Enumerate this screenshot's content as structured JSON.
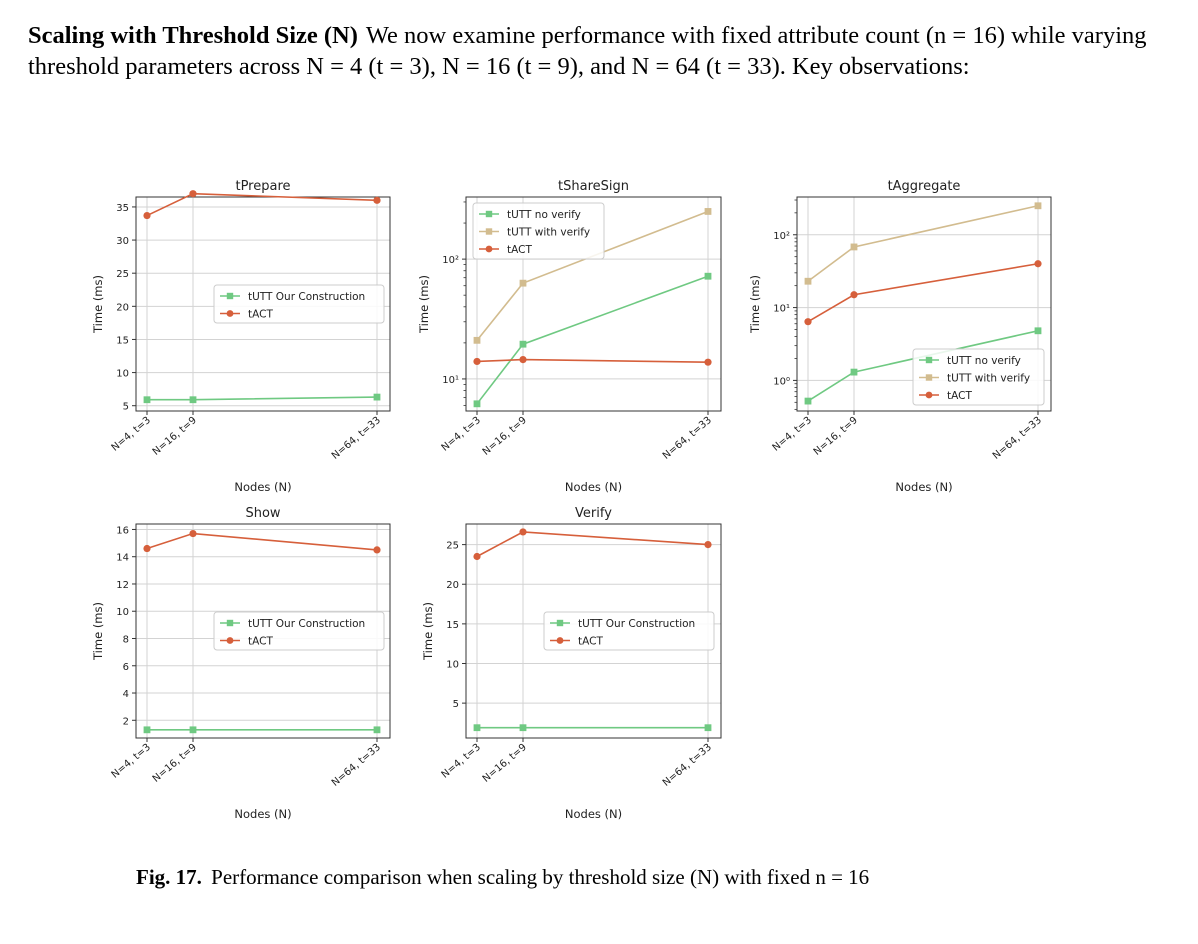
{
  "paragraph": {
    "lead": "Scaling with Threshold Size (N)",
    "body": "We now examine performance with fixed attribute count (n = 16) while varying threshold parameters across N = 4 (t = 3), N = 16 (t = 9), and N = 64 (t = 33). Key observations:"
  },
  "caption": {
    "label": "Fig. 17.",
    "text": "Performance comparison when scaling by threshold size (N) with fixed n = 16"
  },
  "colors": {
    "green": "#6fc982",
    "tan": "#d2bc8f",
    "red": "#d65f3b",
    "grid": "#d3d3d3"
  },
  "chart_data": [
    {
      "type": "line",
      "title": "tPrepare",
      "xlabel": "Nodes (N)",
      "ylabel": "Time (ms)",
      "categories": [
        "N=4, t=3",
        "N=16, t=9",
        "N=64, t=33"
      ],
      "x": [
        4,
        16,
        64
      ],
      "yscale": "linear",
      "ylim": [
        4.2,
        36.5
      ],
      "yticks": [
        5,
        10,
        15,
        20,
        25,
        30,
        35
      ],
      "ytick_labels": [
        "5",
        "10",
        "15",
        "20",
        "25",
        "30",
        "35"
      ],
      "legend_position": "center-right",
      "series": [
        {
          "name": "tUTT Our Construction",
          "color": "green",
          "marker": "square",
          "values": [
            5.9,
            5.9,
            6.3
          ]
        },
        {
          "name": "tACT",
          "color": "red",
          "marker": "circle",
          "values": [
            33.7,
            37.0,
            36.0
          ]
        }
      ]
    },
    {
      "type": "line",
      "title": "tShareSign",
      "xlabel": "Nodes (N)",
      "ylabel": "Time (ms)",
      "categories": [
        "N=4, t=3",
        "N=16, t=9",
        "N=64, t=33"
      ],
      "x": [
        4,
        16,
        64
      ],
      "yscale": "log",
      "ylim": [
        5.4,
        330
      ],
      "yticks": [
        10,
        100
      ],
      "ytick_labels": [
        "10¹",
        "10²"
      ],
      "legend_position": "upper-left",
      "series": [
        {
          "name": "tUTT no verify",
          "color": "green",
          "marker": "square",
          "values": [
            6.2,
            19.5,
            72
          ]
        },
        {
          "name": "tUTT with verify",
          "color": "tan",
          "marker": "square",
          "values": [
            21,
            63,
            250
          ]
        },
        {
          "name": "tACT",
          "color": "red",
          "marker": "circle",
          "values": [
            14,
            14.5,
            13.8
          ]
        }
      ]
    },
    {
      "type": "line",
      "title": "tAggregate",
      "xlabel": "Nodes (N)",
      "ylabel": "Time (ms)",
      "categories": [
        "N=4, t=3",
        "N=16, t=9",
        "N=64, t=33"
      ],
      "x": [
        4,
        16,
        64
      ],
      "yscale": "log",
      "ylim": [
        0.38,
        330
      ],
      "yticks": [
        1,
        10,
        100
      ],
      "ytick_labels": [
        "10⁰",
        "10¹",
        "10²"
      ],
      "legend_position": "lower-right",
      "series": [
        {
          "name": "tUTT no verify",
          "color": "green",
          "marker": "square",
          "values": [
            0.52,
            1.3,
            4.8
          ]
        },
        {
          "name": "tUTT with verify",
          "color": "tan",
          "marker": "square",
          "values": [
            23,
            68,
            250
          ]
        },
        {
          "name": "tACT",
          "color": "red",
          "marker": "circle",
          "values": [
            6.4,
            15,
            40
          ]
        }
      ]
    },
    {
      "type": "line",
      "title": "Show",
      "xlabel": "Nodes (N)",
      "ylabel": "Time (ms)",
      "categories": [
        "N=4, t=3",
        "N=16, t=9",
        "N=64, t=33"
      ],
      "x": [
        4,
        16,
        64
      ],
      "yscale": "linear",
      "ylim": [
        0.7,
        16.4
      ],
      "yticks": [
        2,
        4,
        6,
        8,
        10,
        12,
        14,
        16
      ],
      "ytick_labels": [
        "2",
        "4",
        "6",
        "8",
        "10",
        "12",
        "14",
        "16"
      ],
      "legend_position": "center-right",
      "series": [
        {
          "name": "tUTT Our Construction",
          "color": "green",
          "marker": "square",
          "values": [
            1.3,
            1.3,
            1.3
          ]
        },
        {
          "name": "tACT",
          "color": "red",
          "marker": "circle",
          "values": [
            14.6,
            15.7,
            14.5
          ]
        }
      ]
    },
    {
      "type": "line",
      "title": "Verify",
      "xlabel": "Nodes (N)",
      "ylabel": "Time (ms)",
      "categories": [
        "N=4, t=3",
        "N=16, t=9",
        "N=64, t=33"
      ],
      "x": [
        4,
        16,
        64
      ],
      "yscale": "linear",
      "ylim": [
        0.6,
        27.6
      ],
      "yticks": [
        5,
        10,
        15,
        20,
        25
      ],
      "ytick_labels": [
        "5",
        "10",
        "15",
        "20",
        "25"
      ],
      "legend_position": "center-right",
      "series": [
        {
          "name": "tUTT Our Construction",
          "color": "green",
          "marker": "square",
          "values": [
            1.9,
            1.9,
            1.9
          ]
        },
        {
          "name": "tACT",
          "color": "red",
          "marker": "circle",
          "values": [
            23.5,
            26.6,
            25.0
          ]
        }
      ]
    }
  ]
}
